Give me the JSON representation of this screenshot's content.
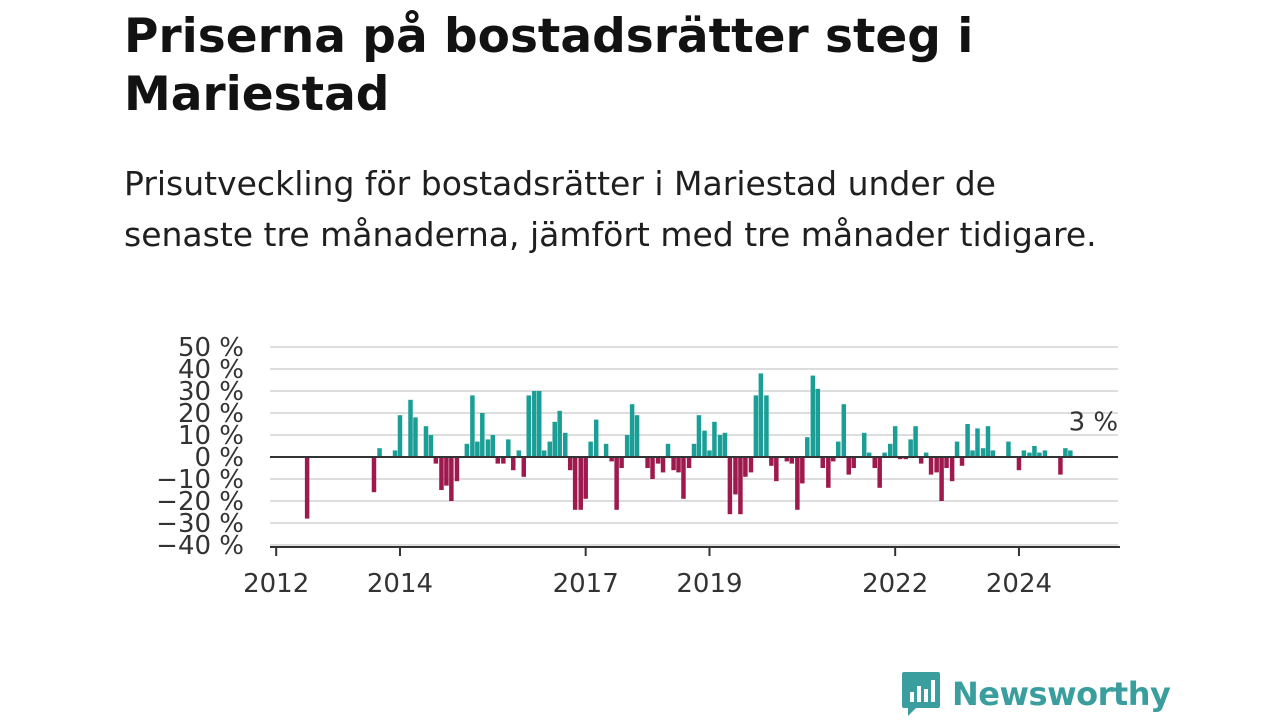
{
  "title": "Priserna på bostadsrätter steg i Mariestad",
  "subtitle": "Prisutveckling för bostadsrätter i Mariestad under de senaste tre månaderna, jämfört med tre månader tidigare.",
  "brand": {
    "name": "Newsworthy",
    "color": "#3a9e9e"
  },
  "colors": {
    "positive": "#1a9e96",
    "negative": "#9e1a4e",
    "grid": "#dddddd",
    "zero": "#333333"
  },
  "chart_data": {
    "type": "bar",
    "y_ticks": [
      "50 %",
      "40 %",
      "30 %",
      "20 %",
      "10 %",
      "0 %",
      "−10 %",
      "−20 %",
      "−30 %",
      "−40 %"
    ],
    "y_tick_values": [
      50,
      40,
      30,
      20,
      10,
      0,
      -10,
      -20,
      -30,
      -40
    ],
    "ylim": [
      -40,
      50
    ],
    "x_ticks": [
      "2012",
      "2014",
      "2017",
      "2019",
      "2022",
      "2024"
    ],
    "x_tick_values": [
      2012.0,
      2014.0,
      2017.0,
      2019.0,
      2022.0,
      2024.0
    ],
    "xlim": [
      2011.9,
      2025.6
    ],
    "grid": true,
    "annotation": {
      "text": "3 %",
      "x": 2025.17,
      "y": 3
    },
    "series": [
      {
        "values": [
          {
            "x": 2012.5,
            "y": -28
          },
          {
            "x": 2013.58,
            "y": -16
          },
          {
            "x": 2013.67,
            "y": 4
          },
          {
            "x": 2013.92,
            "y": 3
          },
          {
            "x": 2014.0,
            "y": 19
          },
          {
            "x": 2014.17,
            "y": 26
          },
          {
            "x": 2014.25,
            "y": 18
          },
          {
            "x": 2014.42,
            "y": 14
          },
          {
            "x": 2014.5,
            "y": 10
          },
          {
            "x": 2014.58,
            "y": -3
          },
          {
            "x": 2014.67,
            "y": -15
          },
          {
            "x": 2014.75,
            "y": -13
          },
          {
            "x": 2014.83,
            "y": -20
          },
          {
            "x": 2014.92,
            "y": -11
          },
          {
            "x": 2015.08,
            "y": 6
          },
          {
            "x": 2015.17,
            "y": 28
          },
          {
            "x": 2015.25,
            "y": 7
          },
          {
            "x": 2015.33,
            "y": 20
          },
          {
            "x": 2015.42,
            "y": 8
          },
          {
            "x": 2015.5,
            "y": 10
          },
          {
            "x": 2015.58,
            "y": -3
          },
          {
            "x": 2015.67,
            "y": -3
          },
          {
            "x": 2015.75,
            "y": 8
          },
          {
            "x": 2015.83,
            "y": -6
          },
          {
            "x": 2015.92,
            "y": 3
          },
          {
            "x": 2016.0,
            "y": -9
          },
          {
            "x": 2016.08,
            "y": 28
          },
          {
            "x": 2016.17,
            "y": 30
          },
          {
            "x": 2016.25,
            "y": 30
          },
          {
            "x": 2016.33,
            "y": 3
          },
          {
            "x": 2016.42,
            "y": 7
          },
          {
            "x": 2016.5,
            "y": 16
          },
          {
            "x": 2016.58,
            "y": 21
          },
          {
            "x": 2016.67,
            "y": 11
          },
          {
            "x": 2016.75,
            "y": -6
          },
          {
            "x": 2016.83,
            "y": -24
          },
          {
            "x": 2016.92,
            "y": -24
          },
          {
            "x": 2017.0,
            "y": -19
          },
          {
            "x": 2017.08,
            "y": 7
          },
          {
            "x": 2017.17,
            "y": 17
          },
          {
            "x": 2017.33,
            "y": 6
          },
          {
            "x": 2017.42,
            "y": -2
          },
          {
            "x": 2017.5,
            "y": -24
          },
          {
            "x": 2017.58,
            "y": -5
          },
          {
            "x": 2017.67,
            "y": 10
          },
          {
            "x": 2017.75,
            "y": 24
          },
          {
            "x": 2017.83,
            "y": 19
          },
          {
            "x": 2018.0,
            "y": -5
          },
          {
            "x": 2018.08,
            "y": -10
          },
          {
            "x": 2018.17,
            "y": -3
          },
          {
            "x": 2018.25,
            "y": -7
          },
          {
            "x": 2018.33,
            "y": 6
          },
          {
            "x": 2018.42,
            "y": -6
          },
          {
            "x": 2018.5,
            "y": -7
          },
          {
            "x": 2018.58,
            "y": -19
          },
          {
            "x": 2018.67,
            "y": -5
          },
          {
            "x": 2018.75,
            "y": 6
          },
          {
            "x": 2018.83,
            "y": 19
          },
          {
            "x": 2018.92,
            "y": 12
          },
          {
            "x": 2019.0,
            "y": 3
          },
          {
            "x": 2019.08,
            "y": 16
          },
          {
            "x": 2019.17,
            "y": 10
          },
          {
            "x": 2019.25,
            "y": 11
          },
          {
            "x": 2019.33,
            "y": -26
          },
          {
            "x": 2019.42,
            "y": -17
          },
          {
            "x": 2019.5,
            "y": -26
          },
          {
            "x": 2019.58,
            "y": -9
          },
          {
            "x": 2019.67,
            "y": -7
          },
          {
            "x": 2019.75,
            "y": 28
          },
          {
            "x": 2019.83,
            "y": 38
          },
          {
            "x": 2019.92,
            "y": 28
          },
          {
            "x": 2020.0,
            "y": -4
          },
          {
            "x": 2020.08,
            "y": -11
          },
          {
            "x": 2020.25,
            "y": -2
          },
          {
            "x": 2020.33,
            "y": -3
          },
          {
            "x": 2020.42,
            "y": -24
          },
          {
            "x": 2020.5,
            "y": -12
          },
          {
            "x": 2020.58,
            "y": 9
          },
          {
            "x": 2020.67,
            "y": 37
          },
          {
            "x": 2020.75,
            "y": 31
          },
          {
            "x": 2020.83,
            "y": -5
          },
          {
            "x": 2020.92,
            "y": -14
          },
          {
            "x": 2021.0,
            "y": -2
          },
          {
            "x": 2021.08,
            "y": 7
          },
          {
            "x": 2021.17,
            "y": 24
          },
          {
            "x": 2021.25,
            "y": -8
          },
          {
            "x": 2021.33,
            "y": -5
          },
          {
            "x": 2021.5,
            "y": 11
          },
          {
            "x": 2021.58,
            "y": 2
          },
          {
            "x": 2021.67,
            "y": -5
          },
          {
            "x": 2021.75,
            "y": -14
          },
          {
            "x": 2021.83,
            "y": 2
          },
          {
            "x": 2021.92,
            "y": 6
          },
          {
            "x": 2022.0,
            "y": 14
          },
          {
            "x": 2022.08,
            "y": -1
          },
          {
            "x": 2022.17,
            "y": -1
          },
          {
            "x": 2022.25,
            "y": 8
          },
          {
            "x": 2022.33,
            "y": 14
          },
          {
            "x": 2022.42,
            "y": -3
          },
          {
            "x": 2022.5,
            "y": 2
          },
          {
            "x": 2022.58,
            "y": -8
          },
          {
            "x": 2022.67,
            "y": -7
          },
          {
            "x": 2022.75,
            "y": -20
          },
          {
            "x": 2022.83,
            "y": -5
          },
          {
            "x": 2022.92,
            "y": -11
          },
          {
            "x": 2023.0,
            "y": 7
          },
          {
            "x": 2023.08,
            "y": -4
          },
          {
            "x": 2023.17,
            "y": 15
          },
          {
            "x": 2023.25,
            "y": 3
          },
          {
            "x": 2023.33,
            "y": 13
          },
          {
            "x": 2023.42,
            "y": 4
          },
          {
            "x": 2023.5,
            "y": 14
          },
          {
            "x": 2023.58,
            "y": 3
          },
          {
            "x": 2023.83,
            "y": 7
          },
          {
            "x": 2024.0,
            "y": -6
          },
          {
            "x": 2024.08,
            "y": 3
          },
          {
            "x": 2024.17,
            "y": 2
          },
          {
            "x": 2024.25,
            "y": 5
          },
          {
            "x": 2024.33,
            "y": 2
          },
          {
            "x": 2024.42,
            "y": 3
          },
          {
            "x": 2024.67,
            "y": -8
          },
          {
            "x": 2024.75,
            "y": 4
          },
          {
            "x": 2024.83,
            "y": 3
          }
        ]
      }
    ]
  }
}
